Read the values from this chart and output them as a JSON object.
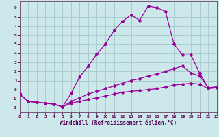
{
  "xlabel": "Windchill (Refroidissement éolien,°C)",
  "bg_color": "#cce8ea",
  "grid_color": "#aacccc",
  "line_color": "#990099",
  "xlim": [
    0,
    23
  ],
  "ylim": [
    -2.5,
    9.7
  ],
  "xticks": [
    0,
    1,
    2,
    3,
    4,
    5,
    6,
    7,
    8,
    9,
    10,
    11,
    12,
    13,
    14,
    15,
    16,
    17,
    18,
    19,
    20,
    21,
    22,
    23
  ],
  "yticks": [
    -2,
    -1,
    0,
    1,
    2,
    3,
    4,
    5,
    6,
    7,
    8,
    9
  ],
  "lines": [
    {
      "x": [
        0,
        1,
        2,
        3,
        4,
        5,
        6,
        7,
        8,
        9,
        10,
        11,
        12,
        13,
        14,
        15,
        16,
        17,
        18,
        19,
        20,
        21,
        22,
        23
      ],
      "y": [
        -0.5,
        -1.3,
        -1.4,
        -1.5,
        -1.6,
        -1.9,
        -0.4,
        1.4,
        2.6,
        3.9,
        5.0,
        6.5,
        7.5,
        8.2,
        7.6,
        9.2,
        9.0,
        8.6,
        5.0,
        3.8,
        3.8,
        1.8,
        0.2,
        0.3
      ]
    },
    {
      "x": [
        0,
        1,
        2,
        3,
        4,
        5,
        6,
        7,
        8,
        9,
        10,
        11,
        12,
        13,
        14,
        15,
        16,
        17,
        18,
        19,
        20,
        21,
        22,
        23
      ],
      "y": [
        -0.5,
        -1.3,
        -1.4,
        -1.5,
        -1.6,
        -1.9,
        -1.3,
        -0.9,
        -0.5,
        -0.2,
        0.1,
        0.4,
        0.7,
        1.0,
        1.2,
        1.5,
        1.7,
        2.0,
        2.3,
        2.6,
        1.8,
        1.5,
        0.2,
        0.3
      ]
    },
    {
      "x": [
        0,
        1,
        2,
        3,
        4,
        5,
        6,
        7,
        8,
        9,
        10,
        11,
        12,
        13,
        14,
        15,
        16,
        17,
        18,
        19,
        20,
        21,
        22,
        23
      ],
      "y": [
        -0.5,
        -1.3,
        -1.4,
        -1.5,
        -1.6,
        -1.9,
        -1.5,
        -1.3,
        -1.1,
        -0.9,
        -0.7,
        -0.5,
        -0.3,
        -0.2,
        -0.1,
        0.0,
        0.1,
        0.3,
        0.5,
        0.6,
        0.7,
        0.6,
        0.1,
        0.2
      ]
    }
  ]
}
